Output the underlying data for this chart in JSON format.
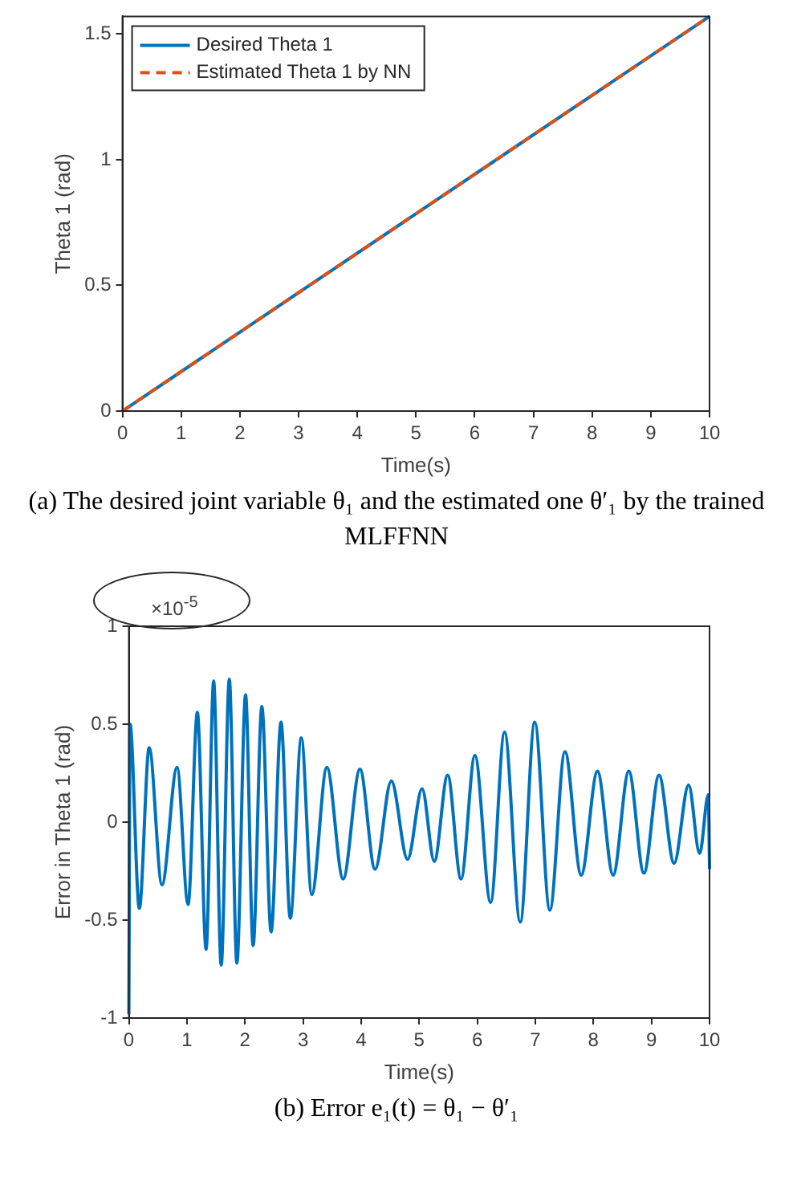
{
  "chart_data": [
    {
      "type": "line",
      "xlabel": "Time(s)",
      "ylabel": "Theta 1 (rad)",
      "x": [
        0,
        10
      ],
      "series": [
        {
          "name": "Desired Theta 1",
          "color": "#0072bd",
          "values": [
            0,
            1.57
          ],
          "line_style": "solid"
        },
        {
          "name": "Estimated Theta 1 by NN",
          "color": "#d95319",
          "values": [
            0,
            1.57
          ],
          "line_style": "dashed"
        }
      ],
      "xlim": [
        0,
        10
      ],
      "xticks": [
        0,
        1,
        2,
        3,
        4,
        5,
        6,
        7,
        8,
        9,
        10
      ],
      "ylim": [
        0,
        1.57
      ],
      "yticks": [
        0,
        0.5,
        1,
        1.5
      ],
      "grid": false,
      "legend": "top left",
      "marker": "none",
      "annotations": [
        "(a) The desired joint variable θ₁ and the estimated one θ′₁ by the trained MLFFNN"
      ]
    },
    {
      "type": "line",
      "xlabel": "Time(s)",
      "ylabel": "Error in Theta 1 (rad)",
      "x": [
        0,
        0.02,
        0.18,
        0.35,
        0.57,
        0.83,
        1.02,
        1.18,
        1.33,
        1.46,
        1.59,
        1.73,
        1.86,
        2.01,
        2.14,
        2.29,
        2.45,
        2.62,
        2.78,
        2.97,
        3.15,
        3.41,
        3.69,
        3.98,
        4.24,
        4.52,
        4.8,
        5.05,
        5.26,
        5.49,
        5.72,
        5.96,
        6.23,
        6.47,
        6.74,
        6.99,
        7.25,
        7.51,
        7.79,
        8.07,
        8.34,
        8.61,
        8.87,
        9.13,
        9.39,
        9.64,
        9.83,
        9.98,
        10
      ],
      "series": [
        {
          "color": "#0072bd",
          "values": [
            -0.98,
            0.5,
            -0.44,
            0.38,
            -0.32,
            0.28,
            -0.42,
            0.56,
            -0.65,
            0.72,
            -0.73,
            0.73,
            -0.72,
            0.65,
            -0.63,
            0.59,
            -0.56,
            0.51,
            -0.49,
            0.43,
            -0.37,
            0.28,
            -0.29,
            0.27,
            -0.24,
            0.21,
            -0.19,
            0.17,
            -0.2,
            0.24,
            -0.29,
            0.34,
            -0.41,
            0.46,
            -0.51,
            0.51,
            -0.45,
            0.36,
            -0.27,
            0.26,
            -0.27,
            0.26,
            -0.26,
            0.24,
            -0.21,
            0.19,
            -0.16,
            0.14,
            -0.24
          ]
        }
      ],
      "xlim": [
        0,
        10
      ],
      "xticks": [
        0,
        1,
        2,
        3,
        4,
        5,
        6,
        7,
        8,
        9,
        10
      ],
      "ylim": [
        -1,
        1
      ],
      "yticks": [
        -1,
        -0.5,
        0,
        0.5,
        1
      ],
      "grid": false,
      "legend": false,
      "marker": "none",
      "annotations": [
        "×10$^{-5}$",
        "(b) Error e₁(t) = θ₁ − θ′₁"
      ]
    }
  ]
}
